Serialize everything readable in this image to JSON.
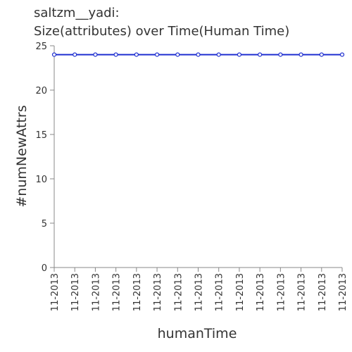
{
  "chart_data": {
    "type": "line",
    "title": "saltzm__yadi:",
    "subtitle": "Size(attributes) over Time(Human Time)",
    "xlabel": "humanTime",
    "ylabel": "#numNewAttrs",
    "categories": [
      "11-2013",
      "11-2013",
      "11-2013",
      "11-2013",
      "11-2013",
      "11-2013",
      "11-2013",
      "11-2013",
      "11-2013",
      "11-2013",
      "11-2013",
      "11-2013",
      "11-2013",
      "11-2013",
      "11-2013"
    ],
    "series": [
      {
        "name": "numNewAttrs",
        "color": "#1f2fd0",
        "values": [
          24,
          24,
          24,
          24,
          24,
          24,
          24,
          24,
          24,
          24,
          24,
          24,
          24,
          24,
          24
        ]
      }
    ],
    "ylim": [
      0,
      25
    ],
    "yticks": [
      0,
      5,
      10,
      15,
      20,
      25
    ],
    "grid": false
  }
}
